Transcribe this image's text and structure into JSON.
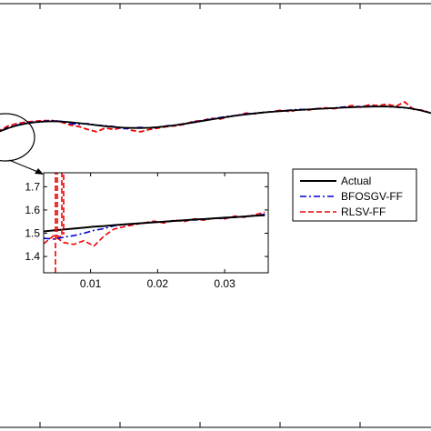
{
  "chart_data": {
    "type": "line",
    "main": {
      "x": [
        0.0,
        0.02,
        0.04,
        0.06,
        0.08,
        0.1,
        0.12,
        0.14,
        0.16,
        0.18,
        0.2,
        0.22,
        0.24,
        0.26,
        0.28,
        0.3,
        0.32,
        0.34,
        0.36,
        0.38,
        0.4,
        0.42,
        0.44,
        0.46,
        0.48,
        0.5,
        0.52,
        0.54,
        0.56,
        0.58,
        0.6,
        0.62,
        0.64,
        0.66,
        0.68,
        0.7,
        0.72,
        0.74,
        0.76,
        0.78,
        0.8,
        0.82,
        0.84,
        0.86,
        0.88,
        0.9,
        0.92,
        0.94,
        0.96,
        0.98,
        1.0
      ],
      "series": [
        {
          "name": "Actual",
          "values": [
            0.5,
            0.555,
            0.6,
            0.635,
            0.66,
            0.677,
            0.687,
            0.69,
            0.686,
            0.678,
            0.666,
            0.652,
            0.638,
            0.624,
            0.613,
            0.605,
            0.601,
            0.6,
            0.604,
            0.612,
            0.624,
            0.639,
            0.656,
            0.675,
            0.694,
            0.714,
            0.733,
            0.751,
            0.768,
            0.783,
            0.796,
            0.808,
            0.818,
            0.827,
            0.835,
            0.842,
            0.849,
            0.855,
            0.861,
            0.867,
            0.873,
            0.878,
            0.883,
            0.887,
            0.889,
            0.888,
            0.883,
            0.873,
            0.857,
            0.833,
            0.8
          ]
        },
        {
          "name": "BFOSGV-FF",
          "values": [
            0.48,
            0.56,
            0.61,
            0.64,
            0.67,
            0.68,
            0.69,
            0.7,
            0.69,
            0.66,
            0.65,
            0.66,
            0.64,
            0.63,
            0.62,
            0.59,
            0.6,
            0.61,
            0.6,
            0.61,
            0.63,
            0.64,
            0.66,
            0.68,
            0.7,
            0.72,
            0.74,
            0.76,
            0.77,
            0.79,
            0.8,
            0.81,
            0.82,
            0.83,
            0.84,
            0.85,
            0.85,
            0.86,
            0.86,
            0.87,
            0.88,
            0.88,
            0.89,
            0.89,
            0.89,
            0.89,
            0.88,
            0.87,
            0.86,
            0.83,
            0.8
          ]
        },
        {
          "name": "RLSV-FF",
          "values": [
            0.47,
            0.57,
            0.63,
            0.66,
            0.68,
            0.69,
            0.7,
            0.7,
            0.68,
            0.64,
            0.62,
            0.58,
            0.55,
            0.6,
            0.58,
            0.61,
            0.57,
            0.55,
            0.58,
            0.6,
            0.62,
            0.63,
            0.65,
            0.69,
            0.7,
            0.73,
            0.72,
            0.75,
            0.77,
            0.8,
            0.79,
            0.81,
            0.82,
            0.84,
            0.82,
            0.85,
            0.84,
            0.86,
            0.87,
            0.86,
            0.88,
            0.9,
            0.88,
            0.91,
            0.9,
            0.92,
            0.89,
            0.95,
            0.85,
            0.84,
            0.8
          ]
        }
      ]
    },
    "inset": {
      "x_ticks": [
        "0.01",
        "0.02",
        "0.03"
      ],
      "y_ticks": [
        "1.4",
        "1.5",
        "1.6",
        "1.7"
      ],
      "xlim": [
        0.003,
        0.0365
      ],
      "ylim": [
        1.33,
        1.76
      ],
      "x": [
        0.003,
        0.0045,
        0.006,
        0.0075,
        0.009,
        0.0105,
        0.012,
        0.0135,
        0.015,
        0.0165,
        0.018,
        0.0195,
        0.021,
        0.0225,
        0.024,
        0.0255,
        0.027,
        0.0285,
        0.03,
        0.0315,
        0.033,
        0.0345,
        0.036
      ],
      "series": [
        {
          "name": "Actual",
          "values": [
            1.508,
            1.512,
            1.516,
            1.52,
            1.524,
            1.528,
            1.531,
            1.535,
            1.538,
            1.541,
            1.544,
            1.547,
            1.55,
            1.553,
            1.556,
            1.559,
            1.561,
            1.564,
            1.567,
            1.569,
            1.572,
            1.575,
            1.577
          ]
        },
        {
          "name": "BFOSGV-FF",
          "values": [
            1.478,
            1.475,
            1.483,
            1.49,
            1.5,
            1.512,
            1.52,
            1.532,
            1.537,
            1.54,
            1.544,
            1.548,
            1.549,
            1.553,
            1.556,
            1.557,
            1.56,
            1.565,
            1.564,
            1.569,
            1.573,
            1.575,
            1.582
          ]
        },
        {
          "name": "RLSV-FF",
          "values": [
            1.455,
            1.49,
            1.46,
            1.452,
            1.468,
            1.445,
            1.488,
            1.518,
            1.528,
            1.536,
            1.545,
            1.552,
            1.544,
            1.557,
            1.55,
            1.562,
            1.556,
            1.566,
            1.561,
            1.574,
            1.568,
            1.58,
            1.59
          ]
        }
      ]
    },
    "legend": {
      "items": [
        {
          "label": "Actual",
          "color": "#000000",
          "dash": "solid"
        },
        {
          "label": "BFOSGV-FF",
          "color": "#0000dd",
          "dash": "dashdot"
        },
        {
          "label": "RLSV-FF",
          "color": "#ee0000",
          "dash": "dashed"
        }
      ]
    },
    "colors": {
      "actual": "#000000",
      "bfosgv": "#0000dd",
      "rlsv": "#ee0000"
    }
  }
}
